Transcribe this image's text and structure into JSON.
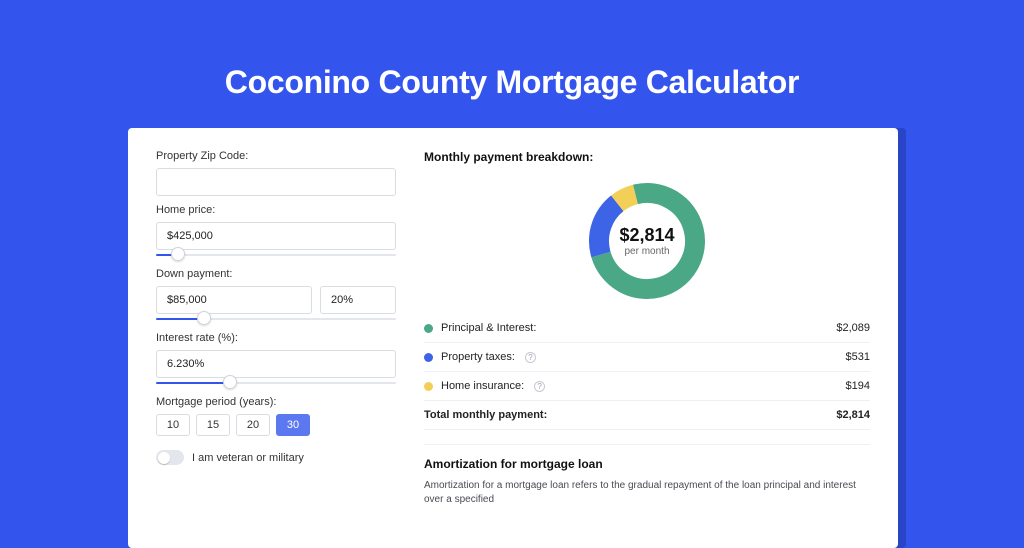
{
  "colors": {
    "page_bg": "#3355ee",
    "card_bg": "#ffffff",
    "principal": "#4aa887",
    "taxes": "#3d63e6",
    "insurance": "#f3cf57",
    "border": "#d9dde3",
    "text": "#222222"
  },
  "title": "Coconino County Mortgage Calculator",
  "form": {
    "zip_label": "Property Zip Code:",
    "zip_value": "",
    "home_price_label": "Home price:",
    "home_price_value": "$425,000",
    "home_price_slider_pct": 9,
    "down_payment_label": "Down payment:",
    "down_payment_value": "$85,000",
    "down_payment_pct_value": "20%",
    "down_payment_slider_pct": 20,
    "interest_label": "Interest rate (%):",
    "interest_value": "6.230%",
    "interest_slider_pct": 31,
    "period_label": "Mortgage period (years):",
    "period_options": [
      "10",
      "15",
      "20",
      "30"
    ],
    "period_selected_index": 3,
    "veteran_label": "I am veteran or military",
    "veteran_on": false
  },
  "breakdown": {
    "section_title": "Monthly payment breakdown:",
    "donut": {
      "amount": "$2,814",
      "sub": "per month",
      "slices": [
        {
          "key": "principal",
          "pct": 74.2,
          "color": "#4aa887"
        },
        {
          "key": "taxes",
          "pct": 18.9,
          "color": "#3d63e6"
        },
        {
          "key": "insurance",
          "pct": 6.9,
          "color": "#f3cf57"
        }
      ],
      "stroke_width": 20
    },
    "rows": [
      {
        "label": "Principal & Interest:",
        "value": "$2,089",
        "color": "#4aa887",
        "info": false
      },
      {
        "label": "Property taxes:",
        "value": "$531",
        "color": "#3d63e6",
        "info": true
      },
      {
        "label": "Home insurance:",
        "value": "$194",
        "color": "#f3cf57",
        "info": true
      }
    ],
    "total_label": "Total monthly payment:",
    "total_value": "$2,814"
  },
  "amortization": {
    "title": "Amortization for mortgage loan",
    "text": "Amortization for a mortgage loan refers to the gradual repayment of the loan principal and interest over a specified"
  }
}
